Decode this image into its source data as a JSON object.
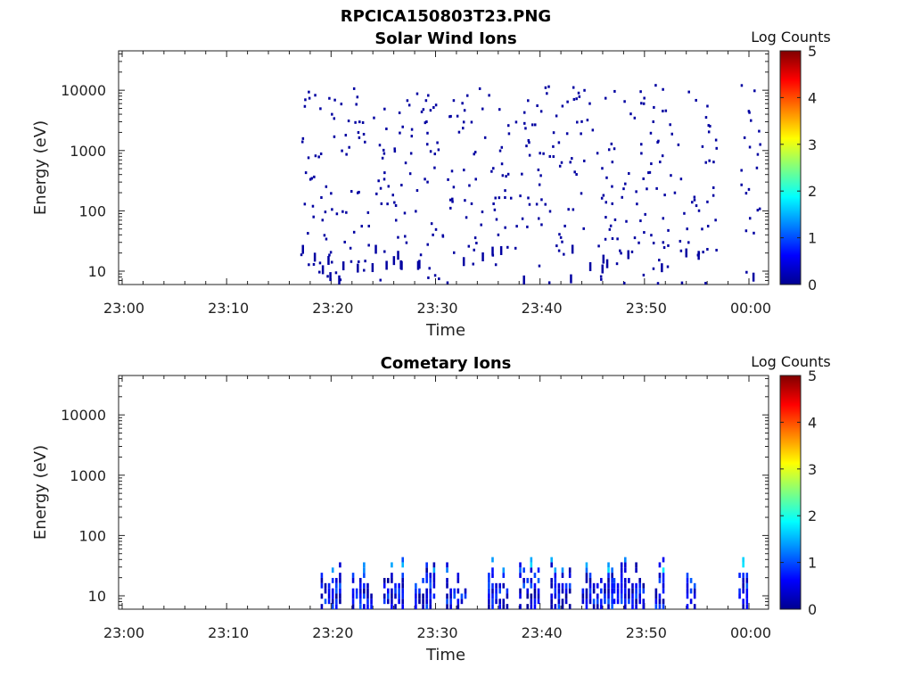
{
  "figure_title": "RPCICA150803T23.PNG",
  "chart_data": [
    {
      "type": "heatmap",
      "title": "Solar Wind Ions",
      "xlabel": "Time",
      "ylabel": "Energy (eV)",
      "x_tick_labels": [
        "23:00",
        "23:10",
        "23:20",
        "23:30",
        "23:40",
        "23:50",
        "00:00"
      ],
      "y_tick_labels": [
        "10",
        "100",
        "1000",
        "10000"
      ],
      "y_scale": "log",
      "colorbar": {
        "label": "Log Counts",
        "ticks": [
          "0",
          "1",
          "2",
          "3",
          "4",
          "5"
        ],
        "range": [
          0,
          5
        ]
      },
      "grid": false,
      "description_of_counts": "sparse isolated low-count pixels (Log Counts near 0) between about 23:17 and 23:56 plus a few near 23:59-00:00, spanning roughly 10 eV to 10000 eV",
      "active_time_ranges": [
        [
          "23:17",
          "23:56"
        ],
        [
          "23:59",
          "00:00"
        ]
      ],
      "energy_range_ev": [
        6,
        12000
      ],
      "log_counts_level": 0.1
    },
    {
      "type": "heatmap",
      "title": "Cometary Ions",
      "xlabel": "Time",
      "ylabel": "Energy (eV)",
      "x_tick_labels": [
        "23:00",
        "23:10",
        "23:20",
        "23:30",
        "23:40",
        "23:50",
        "00:00"
      ],
      "y_tick_labels": [
        "10",
        "100",
        "1000",
        "10000"
      ],
      "y_scale": "log",
      "colorbar": {
        "label": "Log Counts",
        "ticks": [
          "0",
          "1",
          "2",
          "3",
          "4",
          "5"
        ],
        "range": [
          0,
          5
        ]
      },
      "grid": false,
      "active_time_ranges": [
        [
          "23:19",
          "23:20"
        ],
        [
          "23:22",
          "23:23"
        ],
        [
          "23:25",
          "23:26"
        ],
        [
          "23:28",
          "23:29"
        ],
        [
          "23:31",
          "23:32"
        ],
        [
          "23:35",
          "23:36"
        ],
        [
          "23:38",
          "23:39"
        ],
        [
          "23:41",
          "23:42"
        ],
        [
          "23:44",
          "23:46"
        ],
        [
          "23:47",
          "23:49"
        ],
        [
          "23:51",
          "23:51"
        ],
        [
          "23:54",
          "23:54"
        ],
        [
          "23:59",
          "23:59"
        ]
      ],
      "energy_range_ev": [
        6,
        45
      ],
      "max_log_counts": 1.8
    }
  ]
}
